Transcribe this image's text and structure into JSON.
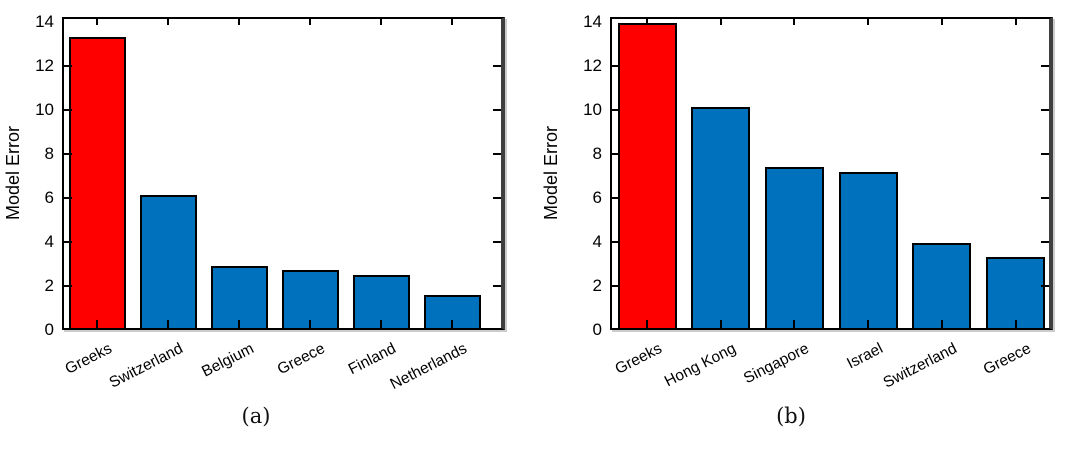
{
  "figure": {
    "background": "#ffffff",
    "captions": [
      {
        "panel": "a",
        "label": "(a)"
      },
      {
        "panel": "b",
        "label": "(b)"
      }
    ]
  },
  "chart_data": [
    {
      "type": "bar",
      "panel": "a",
      "title": "",
      "xlabel": "",
      "ylabel": "Model Error",
      "categories": [
        "Greeks",
        "Switzerland",
        "Belgium",
        "Greece",
        "Finland",
        "Netherlands"
      ],
      "values": [
        13.3,
        6.15,
        2.9,
        2.75,
        2.5,
        1.6
      ],
      "bar_colors": [
        "#ff0000",
        "#0072bd",
        "#0072bd",
        "#0072bd",
        "#0072bd",
        "#0072bd"
      ],
      "bar_edge_color": "#000000",
      "highlight": {
        "category": "Greeks",
        "color": "#ff0000"
      },
      "default_bar_color": "#0072bd",
      "yticks": [
        0,
        2,
        4,
        6,
        8,
        10,
        12,
        14
      ],
      "ylim": [
        0,
        14.2
      ],
      "grid": false,
      "legend": "none",
      "tick_direction": "in",
      "box": true
    },
    {
      "type": "bar",
      "panel": "b",
      "title": "",
      "xlabel": "",
      "ylabel": "Model Error",
      "categories": [
        "Greeks",
        "Hong Kong",
        "Singapore",
        "Israel",
        "Switzerland",
        "Greece"
      ],
      "values": [
        13.95,
        10.15,
        7.4,
        7.2,
        3.95,
        3.3
      ],
      "bar_colors": [
        "#ff0000",
        "#0072bd",
        "#0072bd",
        "#0072bd",
        "#0072bd",
        "#0072bd"
      ],
      "bar_edge_color": "#000000",
      "highlight": {
        "category": "Greeks",
        "color": "#ff0000"
      },
      "default_bar_color": "#0072bd",
      "yticks": [
        0,
        2,
        4,
        6,
        8,
        10,
        12,
        14
      ],
      "ylim": [
        0,
        14.2
      ],
      "grid": false,
      "legend": "none",
      "tick_direction": "in",
      "box": true
    }
  ]
}
